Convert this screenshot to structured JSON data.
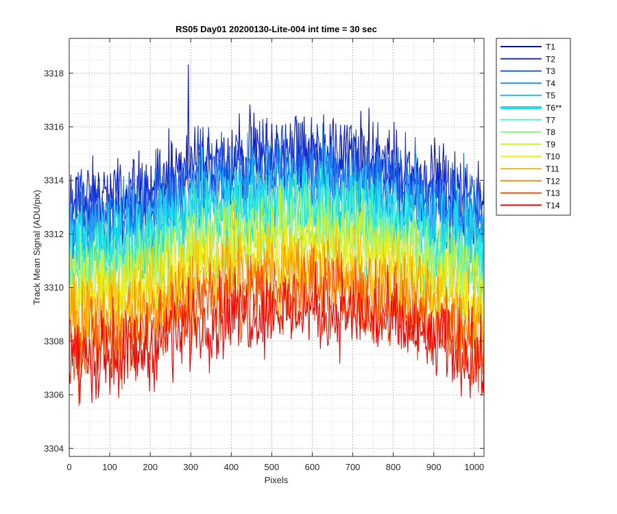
{
  "chart_data": {
    "type": "line",
    "title": "RS05 Day01 20200130-Lite-004 int time = 30 sec",
    "xlabel": "Pixels",
    "ylabel": "Track Mean Signal (ADU/pix)",
    "xlim": [
      0,
      1024
    ],
    "ylim": [
      3303.7,
      3319.3
    ],
    "grid": true,
    "minor_grid": true,
    "legend_position": "outside-top-right",
    "x_ticks": [
      {
        "value": 0,
        "label": "0"
      },
      {
        "value": 100,
        "label": "100"
      },
      {
        "value": 200,
        "label": "200"
      },
      {
        "value": 300,
        "label": "300"
      },
      {
        "value": 400,
        "label": "400"
      },
      {
        "value": 500,
        "label": "500"
      },
      {
        "value": 600,
        "label": "600"
      },
      {
        "value": 700,
        "label": "700"
      },
      {
        "value": 800,
        "label": "800"
      },
      {
        "value": 900,
        "label": "900"
      },
      {
        "value": 1000,
        "label": "1000"
      }
    ],
    "y_ticks": [
      {
        "value": 3304,
        "label": "3304"
      },
      {
        "value": 3306,
        "label": "3306"
      },
      {
        "value": 3308,
        "label": "3308"
      },
      {
        "value": 3310,
        "label": "3310"
      },
      {
        "value": 3312,
        "label": "3312"
      },
      {
        "value": 3314,
        "label": "3314"
      },
      {
        "value": 3316,
        "label": "3316"
      },
      {
        "value": 3318,
        "label": "3318"
      }
    ],
    "x_samples": [
      0,
      50,
      100,
      150,
      200,
      250,
      300,
      350,
      400,
      450,
      500,
      550,
      600,
      650,
      700,
      750,
      800,
      850,
      900,
      950,
      1000,
      1024
    ],
    "series": [
      {
        "name": "T1",
        "color": "#0a12b8",
        "highlight": false,
        "values": [
          3313.0,
          3313.2,
          3313.2,
          3313.4,
          3313.6,
          3314.0,
          3314.4,
          3314.6,
          3314.8,
          3314.9,
          3315.0,
          3315.0,
          3315.0,
          3314.9,
          3314.8,
          3314.6,
          3314.4,
          3314.1,
          3313.8,
          3313.5,
          3313.3,
          3312.7
        ]
      },
      {
        "name": "T2",
        "color": "#1030d8",
        "highlight": false,
        "values": [
          3312.7,
          3312.9,
          3312.9,
          3313.1,
          3313.3,
          3313.7,
          3314.1,
          3314.3,
          3314.5,
          3314.6,
          3314.7,
          3314.7,
          3314.7,
          3314.6,
          3314.5,
          3314.3,
          3314.1,
          3313.8,
          3313.5,
          3313.2,
          3313.0,
          3312.4
        ]
      },
      {
        "name": "T3",
        "color": "#1a5ae6",
        "highlight": false,
        "values": [
          3312.4,
          3312.6,
          3312.6,
          3312.8,
          3313.0,
          3313.4,
          3313.8,
          3314.0,
          3314.2,
          3314.3,
          3314.4,
          3314.4,
          3314.4,
          3314.3,
          3314.2,
          3314.0,
          3313.8,
          3313.5,
          3313.2,
          3312.9,
          3312.7,
          3312.1
        ]
      },
      {
        "name": "T4",
        "color": "#1e8cf0",
        "highlight": false,
        "values": [
          3312.0,
          3312.2,
          3312.2,
          3312.4,
          3312.6,
          3313.0,
          3313.4,
          3313.6,
          3313.8,
          3313.9,
          3314.0,
          3314.0,
          3314.0,
          3313.9,
          3313.8,
          3313.6,
          3313.4,
          3313.1,
          3312.8,
          3312.5,
          3312.3,
          3311.7
        ]
      },
      {
        "name": "T5",
        "color": "#22b8f4",
        "highlight": false,
        "values": [
          3311.6,
          3311.8,
          3311.8,
          3312.0,
          3312.2,
          3312.6,
          3313.0,
          3313.2,
          3313.4,
          3313.5,
          3313.6,
          3313.6,
          3313.6,
          3313.5,
          3313.4,
          3313.2,
          3313.0,
          3312.7,
          3312.4,
          3312.1,
          3311.9,
          3311.3
        ]
      },
      {
        "name": "T6**",
        "color": "#12e0ec",
        "highlight": true,
        "values": [
          3311.2,
          3311.4,
          3311.4,
          3311.6,
          3311.8,
          3312.2,
          3312.6,
          3312.8,
          3313.0,
          3313.1,
          3313.2,
          3313.2,
          3313.2,
          3313.1,
          3313.0,
          3312.8,
          3312.6,
          3312.3,
          3312.0,
          3311.7,
          3311.5,
          3310.9
        ]
      },
      {
        "name": "T7",
        "color": "#4ef0c8",
        "highlight": false,
        "values": [
          3310.8,
          3311.0,
          3311.0,
          3311.2,
          3311.4,
          3311.8,
          3312.2,
          3312.4,
          3312.6,
          3312.7,
          3312.8,
          3312.8,
          3312.8,
          3312.7,
          3312.6,
          3312.4,
          3312.2,
          3311.9,
          3311.6,
          3311.3,
          3311.1,
          3310.5
        ]
      },
      {
        "name": "T8",
        "color": "#8cf08c",
        "highlight": false,
        "values": [
          3310.4,
          3310.6,
          3310.6,
          3310.8,
          3311.0,
          3311.4,
          3311.8,
          3312.0,
          3312.2,
          3312.3,
          3312.4,
          3312.4,
          3312.4,
          3312.3,
          3312.2,
          3312.0,
          3311.8,
          3311.5,
          3311.2,
          3310.9,
          3310.7,
          3310.1
        ]
      },
      {
        "name": "T9",
        "color": "#c8f040",
        "highlight": false,
        "values": [
          3310.0,
          3310.2,
          3310.2,
          3310.4,
          3310.6,
          3311.0,
          3311.4,
          3311.6,
          3311.8,
          3311.9,
          3312.0,
          3312.0,
          3312.0,
          3311.9,
          3311.8,
          3311.6,
          3311.4,
          3311.1,
          3310.8,
          3310.5,
          3310.3,
          3309.7
        ]
      },
      {
        "name": "T10",
        "color": "#f0f010",
        "highlight": false,
        "values": [
          3309.5,
          3309.7,
          3309.7,
          3309.9,
          3310.1,
          3310.5,
          3310.9,
          3311.1,
          3311.3,
          3311.4,
          3311.5,
          3311.5,
          3311.5,
          3311.4,
          3311.3,
          3311.1,
          3310.9,
          3310.6,
          3310.3,
          3310.0,
          3309.8,
          3309.2
        ]
      },
      {
        "name": "T11",
        "color": "#f8c400",
        "highlight": false,
        "values": [
          3309.0,
          3309.2,
          3309.2,
          3309.4,
          3309.6,
          3310.0,
          3310.4,
          3310.6,
          3310.8,
          3310.9,
          3311.0,
          3311.0,
          3311.0,
          3310.9,
          3310.8,
          3310.6,
          3310.4,
          3310.1,
          3309.8,
          3309.5,
          3309.3,
          3308.7
        ]
      },
      {
        "name": "T12",
        "color": "#ff8a00",
        "highlight": false,
        "values": [
          3308.4,
          3308.6,
          3308.6,
          3308.8,
          3309.0,
          3309.4,
          3309.8,
          3310.0,
          3310.2,
          3310.3,
          3310.4,
          3310.4,
          3310.4,
          3310.3,
          3310.2,
          3310.0,
          3309.8,
          3309.5,
          3309.2,
          3308.9,
          3308.7,
          3308.1
        ]
      },
      {
        "name": "T13",
        "color": "#ff4a00",
        "highlight": false,
        "values": [
          3307.8,
          3308.0,
          3308.0,
          3308.2,
          3308.4,
          3308.8,
          3309.2,
          3309.4,
          3309.6,
          3309.7,
          3309.8,
          3309.8,
          3309.8,
          3309.7,
          3309.6,
          3309.4,
          3309.2,
          3308.9,
          3308.6,
          3308.3,
          3308.1,
          3307.5
        ]
      },
      {
        "name": "T14",
        "color": "#f20000",
        "highlight": false,
        "values": [
          3307.2,
          3307.4,
          3307.4,
          3307.6,
          3307.8,
          3308.2,
          3308.6,
          3308.8,
          3309.0,
          3309.1,
          3309.2,
          3309.2,
          3309.2,
          3309.1,
          3309.0,
          3308.8,
          3308.6,
          3308.3,
          3308.0,
          3307.7,
          3307.5,
          3306.9
        ]
      }
    ]
  }
}
